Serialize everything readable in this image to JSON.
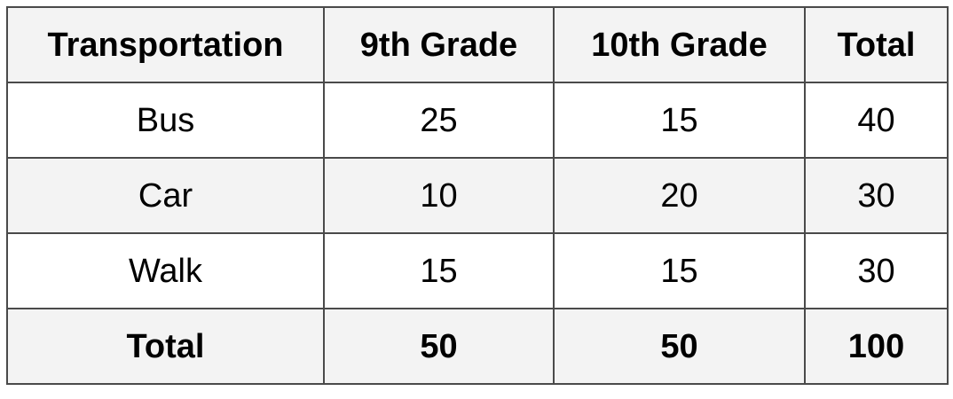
{
  "chart_data": {
    "type": "table",
    "columns": [
      "Transportation",
      "9th Grade",
      "10th Grade",
      "Total"
    ],
    "rows": [
      {
        "label": "Bus",
        "values": [
          "25",
          "15",
          "40"
        ]
      },
      {
        "label": "Car",
        "values": [
          "10",
          "20",
          "30"
        ]
      },
      {
        "label": "Walk",
        "values": [
          "15",
          "15",
          "30"
        ]
      }
    ],
    "totals": {
      "label": "Total",
      "values": [
        "50",
        "50",
        "100"
      ]
    },
    "colors": {
      "border": "#4a4a4a",
      "header_bg": "#f3f3f3",
      "alt_row_bg": "#f3f3f3",
      "row_bg": "#ffffff"
    }
  }
}
